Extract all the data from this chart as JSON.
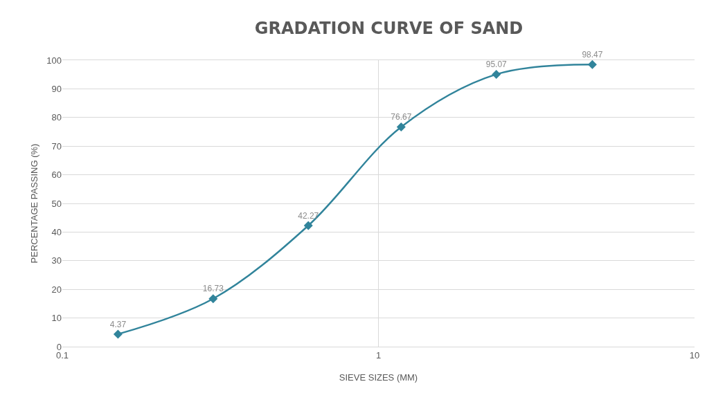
{
  "chart_data": {
    "type": "line",
    "title": "GRADATION CURVE OF SAND",
    "xlabel": "SIEVE SIZES (MM)",
    "ylabel": "PERCENTAGE PASSING (%)",
    "x": [
      0.15,
      0.3,
      0.6,
      1.18,
      2.36,
      4.75
    ],
    "series": [
      {
        "color": "#31849b",
        "values": [
          4.37,
          16.73,
          42.27,
          76.67,
          95.07,
          98.47
        ]
      }
    ],
    "log": "x",
    "xlim": [
      0.1,
      10
    ],
    "xticks": [
      0.1,
      1,
      10
    ],
    "ylim": [
      0,
      100
    ],
    "yticks": [
      0,
      10,
      20,
      30,
      40,
      50,
      60,
      70,
      80,
      90,
      100
    ],
    "grid": true,
    "legend": false,
    "marker": "diamond",
    "line_style": "solid",
    "data_labels": true
  }
}
